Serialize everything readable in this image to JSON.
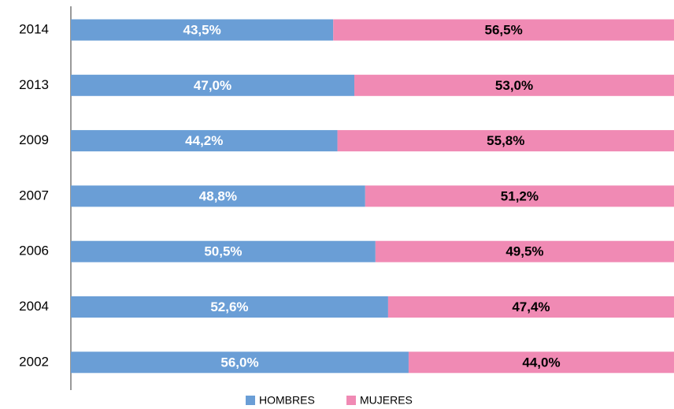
{
  "chart_data": {
    "type": "stacked_bar_horizontal",
    "categories": [
      "2014",
      "2013",
      "2009",
      "2007",
      "2006",
      "2004",
      "2002"
    ],
    "xlim": [
      0,
      100
    ],
    "series": [
      {
        "name": "HOMBRES",
        "color": "#6a9ed6",
        "label_color": "#ffffff",
        "values": [
          43.5,
          47.0,
          44.2,
          48.8,
          50.5,
          52.6,
          56.0
        ],
        "value_labels": [
          "43,5%",
          "47,0%",
          "44,2%",
          "48,8%",
          "50,5%",
          "52,6%",
          "56,0%"
        ]
      },
      {
        "name": "MUJERES",
        "color": "#f08ab4",
        "label_color": "#000000",
        "values": [
          56.5,
          53.0,
          55.8,
          51.2,
          49.5,
          47.4,
          44.0
        ],
        "value_labels": [
          "56,5%",
          "53,0%",
          "55,8%",
          "51,2%",
          "49,5%",
          "47,4%",
          "44,0%"
        ]
      }
    ],
    "legend": "bottom"
  }
}
